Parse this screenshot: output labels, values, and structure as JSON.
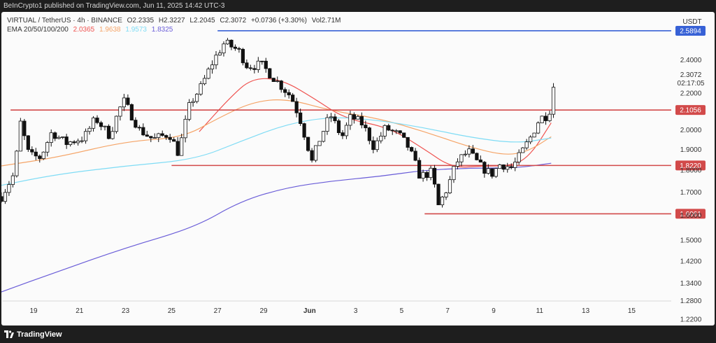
{
  "header": {
    "publish_line": "BeInCrypto1 published on TradingView.com, Jun 11, 2025 14:42 UTC-3"
  },
  "legend": {
    "symbol": "VIRTUAL / TetherUS · 4h · BINANCE",
    "open": "O2.2335",
    "high": "H2.3227",
    "low": "L2.2045",
    "close": "C2.3072",
    "change": "+0.0736 (+3.30%)",
    "volume": "Vol2.71M",
    "ema_label": "EMA 20/50/100/200",
    "ema20": "2.0365",
    "ema50": "1.9638",
    "ema100": "1.9573",
    "ema200": "1.8325"
  },
  "footer": {
    "brand": "TradingView"
  },
  "colors": {
    "background": "#fbfbfb",
    "up": "#ffffff",
    "down": "#111111",
    "ema20": "#ef5350",
    "ema50": "#f5a467",
    "ema100": "#7fdcf5",
    "ema200": "#6a5dd8",
    "resistance": "#d24a4a",
    "top_line": "#3761d6"
  },
  "chart_data": {
    "type": "line",
    "title": "",
    "xlabel": "",
    "ylabel": "",
    "quote_currency": "USDT",
    "price_scale": "log",
    "ylim": [
      1.2,
      2.72
    ],
    "x_ticks": [
      "19",
      "21",
      "23",
      "25",
      "27",
      "29",
      "Jun",
      "3",
      "5",
      "7",
      "9",
      "11",
      "13",
      "15"
    ],
    "y_ticks": [
      "2.4000",
      "2.2000",
      "2.0000",
      "1.9000",
      "1.8000",
      "1.7000",
      "1.6000",
      "1.5000",
      "1.4200",
      "1.3400",
      "1.2800",
      "1.2200"
    ],
    "current_price": "2.3072",
    "countdown": "02:17:05",
    "levels": [
      {
        "label": "2.5894",
        "value": 2.5894,
        "start": "May 27",
        "color": "#3761d6"
      },
      {
        "label": "2.1056",
        "value": 2.1056,
        "start": "May 18",
        "color": "#d24a4a"
      },
      {
        "label": "1.8220",
        "value": 1.822,
        "start": "May 25",
        "color": "#d24a4a"
      },
      {
        "label": "1.6061",
        "value": 1.6061,
        "start": "Jun 5",
        "color": "#d24a4a"
      }
    ],
    "candle_anchors": [
      {
        "day": 17.6,
        "p": 1.68
      },
      {
        "day": 18.2,
        "p": 1.79
      },
      {
        "day": 18.4,
        "p": 2.05
      },
      {
        "day": 18.8,
        "p": 1.87
      },
      {
        "day": 19.3,
        "p": 1.86
      },
      {
        "day": 19.8,
        "p": 1.99
      },
      {
        "day": 20.4,
        "p": 1.93
      },
      {
        "day": 21.2,
        "p": 1.96
      },
      {
        "day": 21.7,
        "p": 2.06
      },
      {
        "day": 22.3,
        "p": 1.97
      },
      {
        "day": 22.9,
        "p": 2.16
      },
      {
        "day": 23.6,
        "p": 2.0
      },
      {
        "day": 24.2,
        "p": 1.95
      },
      {
        "day": 24.9,
        "p": 1.98
      },
      {
        "day": 25.3,
        "p": 1.88
      },
      {
        "day": 25.8,
        "p": 2.14
      },
      {
        "day": 26.3,
        "p": 2.24
      },
      {
        "day": 26.8,
        "p": 2.39
      },
      {
        "day": 27.3,
        "p": 2.51
      },
      {
        "day": 27.9,
        "p": 2.46
      },
      {
        "day": 28.3,
        "p": 2.36
      },
      {
        "day": 28.9,
        "p": 2.37
      },
      {
        "day": 29.5,
        "p": 2.28
      },
      {
        "day": 30.2,
        "p": 2.18
      },
      {
        "day": 30.6,
        "p": 2.05
      },
      {
        "day": 31.1,
        "p": 1.84
      },
      {
        "day": 31.4,
        "p": 1.94
      },
      {
        "day": 31.9,
        "p": 2.08
      },
      {
        "day": 32.4,
        "p": 1.96
      },
      {
        "day": 32.8,
        "p": 2.07
      },
      {
        "day": 33.3,
        "p": 2.03
      },
      {
        "day": 33.8,
        "p": 1.91
      },
      {
        "day": 34.3,
        "p": 2.01
      },
      {
        "day": 34.9,
        "p": 1.97
      },
      {
        "day": 35.3,
        "p": 1.91
      },
      {
        "day": 35.8,
        "p": 1.77
      },
      {
        "day": 36.3,
        "p": 1.79
      },
      {
        "day": 36.6,
        "p": 1.64
      },
      {
        "day": 37.0,
        "p": 1.72
      },
      {
        "day": 37.4,
        "p": 1.84
      },
      {
        "day": 37.9,
        "p": 1.89
      },
      {
        "day": 38.4,
        "p": 1.82
      },
      {
        "day": 38.9,
        "p": 1.78
      },
      {
        "day": 39.3,
        "p": 1.83
      },
      {
        "day": 39.8,
        "p": 1.81
      },
      {
        "day": 40.2,
        "p": 1.88
      },
      {
        "day": 40.6,
        "p": 1.96
      },
      {
        "day": 41.0,
        "p": 2.06
      },
      {
        "day": 41.4,
        "p": 2.08
      },
      {
        "day": 41.6,
        "p": 2.24
      },
      {
        "day": 41.7,
        "p": 2.31
      }
    ],
    "ema_points": {
      "ema20": [
        {
          "day": 26.2,
          "p": 1.99
        },
        {
          "day": 27.5,
          "p": 2.17
        },
        {
          "day": 28.5,
          "p": 2.29
        },
        {
          "day": 29.8,
          "p": 2.28
        },
        {
          "day": 31.2,
          "p": 2.17
        },
        {
          "day": 32.5,
          "p": 2.06
        },
        {
          "day": 34.5,
          "p": 2.01
        },
        {
          "day": 36.0,
          "p": 1.9
        },
        {
          "day": 37.2,
          "p": 1.81
        },
        {
          "day": 38.5,
          "p": 1.82
        },
        {
          "day": 39.8,
          "p": 1.82
        },
        {
          "day": 40.6,
          "p": 1.87
        },
        {
          "day": 41.5,
          "p": 2.0365
        }
      ],
      "ema50": [
        {
          "day": 17.6,
          "p": 1.82
        },
        {
          "day": 20.0,
          "p": 1.86
        },
        {
          "day": 23.0,
          "p": 1.94
        },
        {
          "day": 25.5,
          "p": 1.96
        },
        {
          "day": 27.0,
          "p": 2.06
        },
        {
          "day": 28.5,
          "p": 2.15
        },
        {
          "day": 30.0,
          "p": 2.17
        },
        {
          "day": 32.0,
          "p": 2.1
        },
        {
          "day": 34.0,
          "p": 2.06
        },
        {
          "day": 36.0,
          "p": 1.99
        },
        {
          "day": 38.0,
          "p": 1.91
        },
        {
          "day": 39.5,
          "p": 1.87
        },
        {
          "day": 40.5,
          "p": 1.89
        },
        {
          "day": 41.5,
          "p": 1.9638
        }
      ],
      "ema100": [
        {
          "day": 17.6,
          "p": 1.73
        },
        {
          "day": 20.0,
          "p": 1.78
        },
        {
          "day": 23.0,
          "p": 1.82
        },
        {
          "day": 26.0,
          "p": 1.85
        },
        {
          "day": 28.0,
          "p": 1.94
        },
        {
          "day": 30.0,
          "p": 2.03
        },
        {
          "day": 32.0,
          "p": 2.07
        },
        {
          "day": 34.0,
          "p": 2.05
        },
        {
          "day": 36.0,
          "p": 2.01
        },
        {
          "day": 38.0,
          "p": 1.96
        },
        {
          "day": 40.0,
          "p": 1.93
        },
        {
          "day": 41.5,
          "p": 1.9573
        }
      ],
      "ema200": [
        {
          "day": 17.6,
          "p": 1.31
        },
        {
          "day": 20.0,
          "p": 1.38
        },
        {
          "day": 23.0,
          "p": 1.47
        },
        {
          "day": 26.0,
          "p": 1.55
        },
        {
          "day": 28.0,
          "p": 1.66
        },
        {
          "day": 30.0,
          "p": 1.72
        },
        {
          "day": 32.0,
          "p": 1.75
        },
        {
          "day": 34.0,
          "p": 1.77
        },
        {
          "day": 36.0,
          "p": 1.8
        },
        {
          "day": 38.0,
          "p": 1.81
        },
        {
          "day": 40.0,
          "p": 1.81
        },
        {
          "day": 41.5,
          "p": 1.8325
        }
      ]
    },
    "grid": false,
    "legend_position": "top-left"
  }
}
